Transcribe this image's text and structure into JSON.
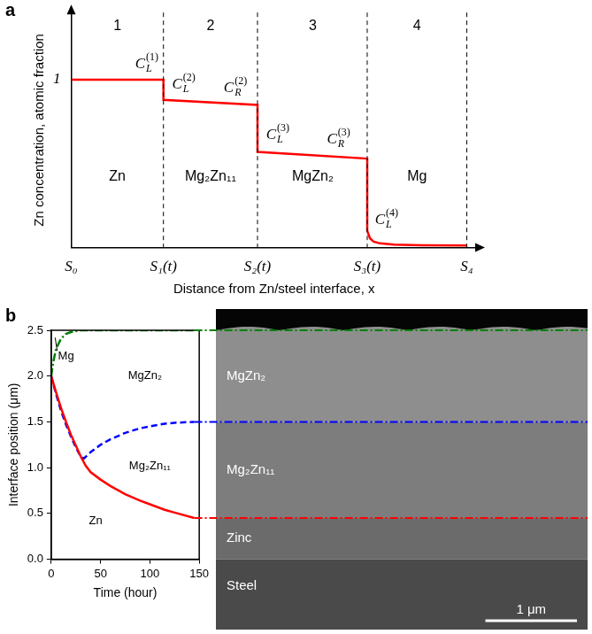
{
  "chart_data": [
    {
      "panel": "a",
      "type": "line",
      "x_label": "Distance from Zn/steel interface, x",
      "y_label": "Zn concentration, atomic fraction",
      "xlim": [
        0,
        4.4
      ],
      "ylim": [
        0,
        1.4
      ],
      "xticks": [
        {
          "value": 0,
          "label": "S₀"
        },
        {
          "value": 1,
          "label": "S₁(t)"
        },
        {
          "value": 2.02,
          "label": "S₂(t)"
        },
        {
          "value": 3.21,
          "label": "S₃(t)"
        },
        {
          "value": 4.29,
          "label": "S₄"
        }
      ],
      "yticks": [
        1
      ],
      "grid": "x",
      "series": [
        {
          "color": "#ff0000",
          "line_style": "solid",
          "x": [
            0,
            1,
            1,
            2.02,
            2.02,
            3.21,
            3.21,
            3.24,
            3.28,
            3.35,
            3.5,
            3.8,
            4.29
          ],
          "values": [
            1,
            1,
            0.88,
            0.85,
            0.57,
            0.53,
            0.1,
            0.055,
            0.035,
            0.025,
            0.018,
            0.014,
            0.012
          ]
        }
      ],
      "annotations": [
        {
          "text": "1",
          "x": 0.5,
          "y": 1.32
        },
        {
          "text": "2",
          "x": 1.51,
          "y": 1.32
        },
        {
          "text": "3",
          "x": 2.62,
          "y": 1.32
        },
        {
          "text": "4",
          "x": 3.75,
          "y": 1.32
        },
        {
          "text": "Zn",
          "x": 0.5,
          "y": 0.42
        },
        {
          "text": "Mg₂Zn₁₁",
          "x": 1.51,
          "y": 0.42
        },
        {
          "text": "MgZn₂",
          "x": 2.62,
          "y": 0.42
        },
        {
          "text": "Mg",
          "x": 3.75,
          "y": 0.42
        },
        {
          "text": "C",
          "sub": "L",
          "sup": "(1)",
          "x": 0.82,
          "y": 1.1
        },
        {
          "text": "C",
          "sub": "L",
          "sup": "(2)",
          "x": 1.22,
          "y": 0.98
        },
        {
          "text": "C",
          "sub": "R",
          "sup": "(2)",
          "x": 1.78,
          "y": 0.96
        },
        {
          "text": "C",
          "sub": "L",
          "sup": "(3)",
          "x": 2.24,
          "y": 0.68
        },
        {
          "text": "C",
          "sub": "R",
          "sup": "(3)",
          "x": 2.9,
          "y": 0.65
        },
        {
          "text": "C",
          "sub": "L",
          "sup": "(4)",
          "x": 3.42,
          "y": 0.17
        }
      ]
    },
    {
      "panel": "b",
      "type": "line",
      "x_label": "Time (hour)",
      "y_label": "Interface position (μm)",
      "xlim": [
        0,
        150
      ],
      "ylim": [
        0,
        2.5
      ],
      "xticks": [
        0,
        50,
        100,
        150
      ],
      "yticks": [
        {
          "value": 0,
          "label": "0.0"
        },
        0.5,
        {
          "value": 1,
          "label": "1.0"
        },
        1.5,
        {
          "value": 2,
          "label": "2.0"
        },
        2.5
      ],
      "grid": false,
      "series": [
        {
          "color": "#ff0000",
          "line_style": "solid",
          "x": [
            0,
            5,
            10,
            15,
            20,
            25,
            30,
            35,
            40,
            50,
            60,
            75,
            90,
            100,
            115,
            125,
            145
          ],
          "values": [
            2.0,
            1.82,
            1.65,
            1.5,
            1.36,
            1.24,
            1.12,
            1.02,
            0.95,
            0.87,
            0.8,
            0.71,
            0.64,
            0.6,
            0.54,
            0.51,
            0.45
          ]
        },
        {
          "color": "#0000ff",
          "line_style": "dashed",
          "x": [
            0,
            5,
            10,
            15,
            20,
            25,
            30,
            33,
            40,
            50,
            60,
            75,
            90,
            100,
            115,
            125,
            145
          ],
          "values": [
            2.0,
            1.8,
            1.62,
            1.47,
            1.34,
            1.22,
            1.12,
            1.1,
            1.17,
            1.25,
            1.31,
            1.38,
            1.43,
            1.45,
            1.48,
            1.49,
            1.5
          ]
        },
        {
          "color": "#008000",
          "line_style": "dashdot",
          "x": [
            0,
            2,
            5,
            10,
            15,
            20,
            30,
            145
          ],
          "values": [
            2.0,
            2.15,
            2.3,
            2.41,
            2.46,
            2.48,
            2.5,
            2.5
          ]
        }
      ],
      "annotations": [
        {
          "text": "Mg",
          "x": 15,
          "y": 2.22,
          "pointer": {
            "x": 4,
            "y": 2.42
          }
        },
        {
          "text": "MgZn₂",
          "x": 95,
          "y": 2.0
        },
        {
          "text": "Mg₂Zn₁₁",
          "x": 100,
          "y": 1.02
        },
        {
          "text": "Zn",
          "x": 45,
          "y": 0.42
        }
      ]
    }
  ],
  "micrograph": {
    "labels": [
      "MgZn₂",
      "Mg₂Zn₁₁",
      "Zinc",
      "Steel"
    ],
    "scale_bar": {
      "value": 1,
      "label": "1 μm"
    }
  }
}
